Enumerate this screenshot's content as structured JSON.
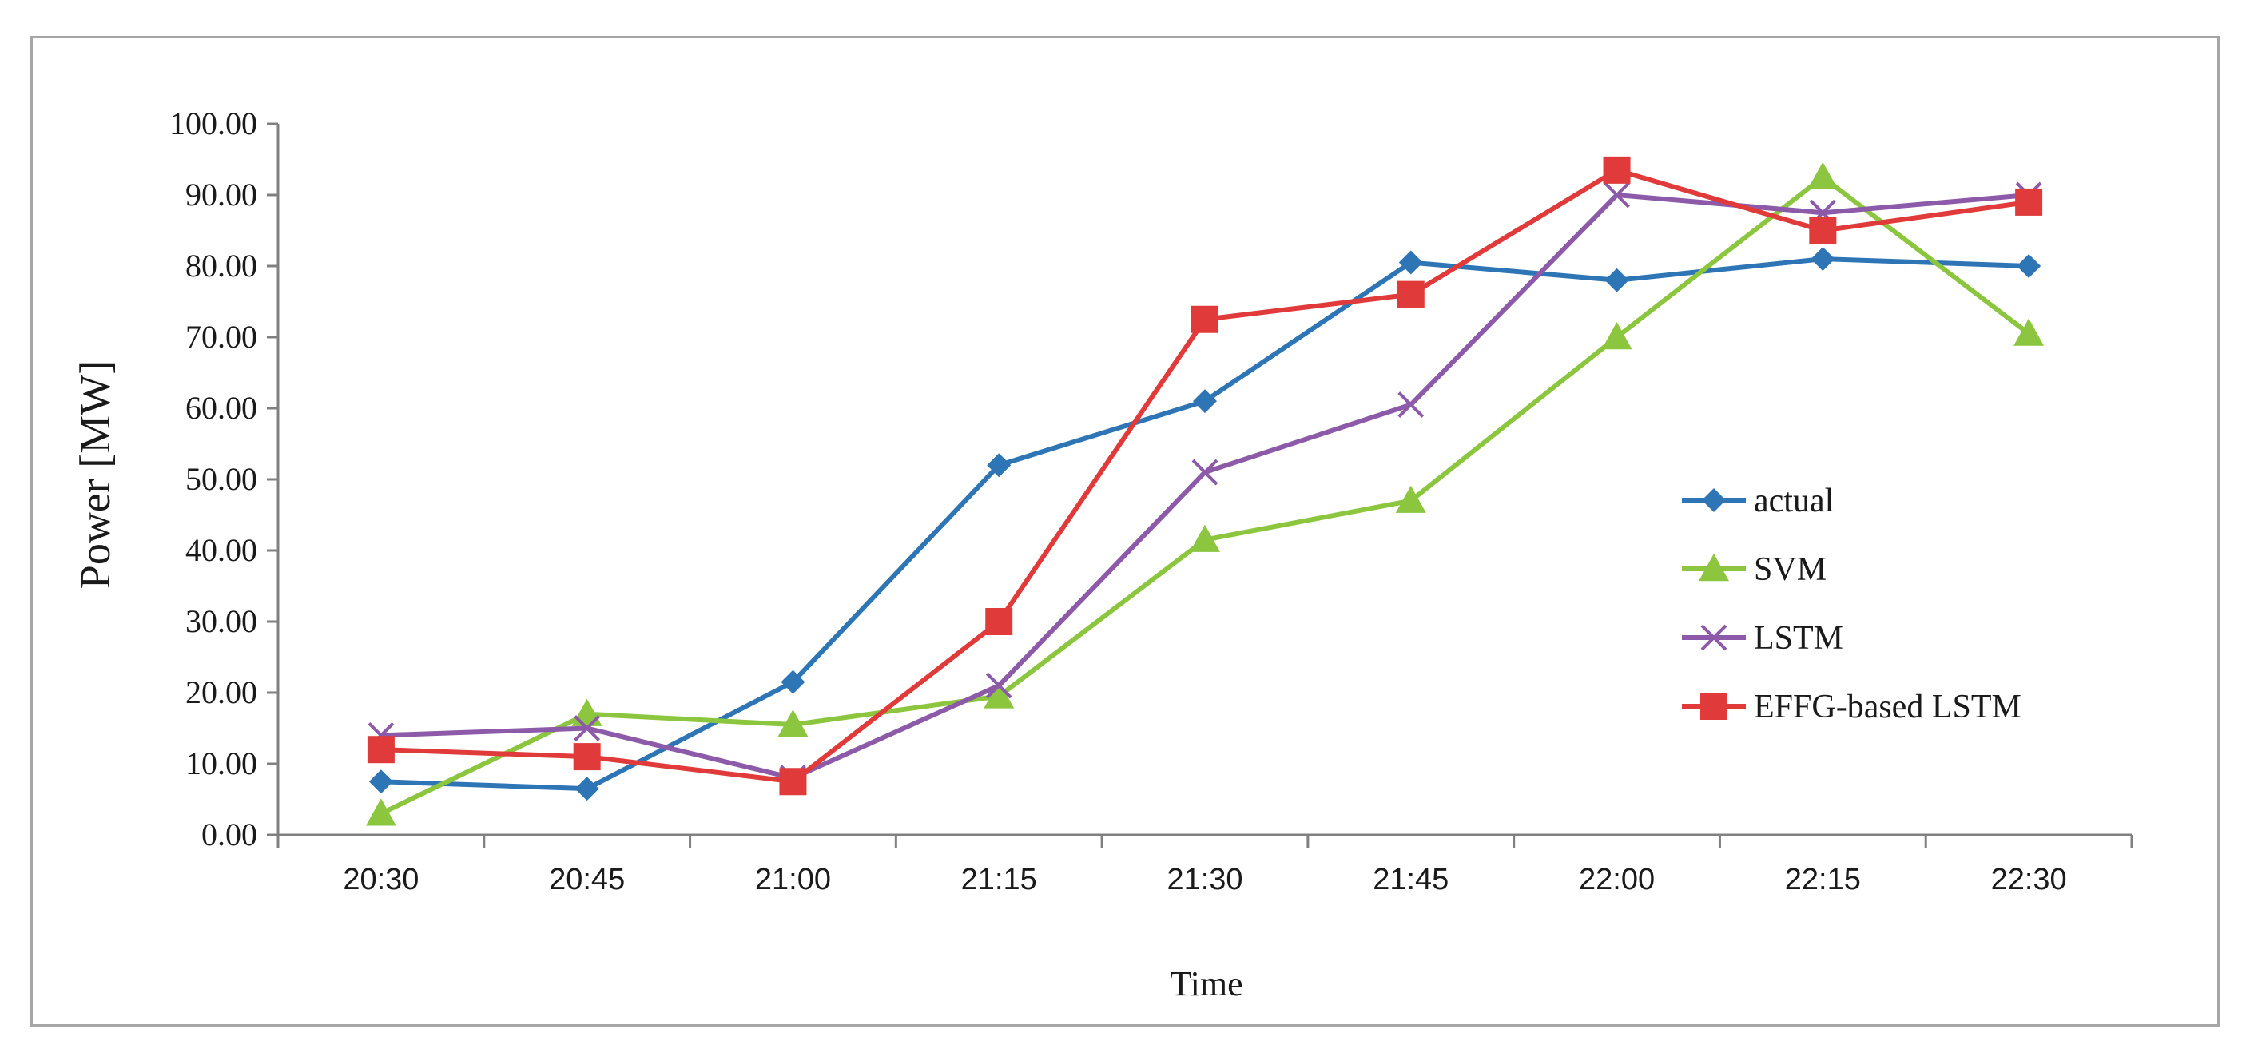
{
  "chart_data": {
    "type": "line",
    "title": "",
    "xlabel": "Time",
    "ylabel": "Power [MW]",
    "x": [
      "20:30",
      "20:45",
      "21:00",
      "21:15",
      "21:30",
      "21:45",
      "22:00",
      "22:15",
      "22:30"
    ],
    "ylim": [
      0,
      100
    ],
    "yticks": [
      "0.00",
      "10.00",
      "20.00",
      "30.00",
      "40.00",
      "50.00",
      "60.00",
      "70.00",
      "80.00",
      "90.00",
      "100.00"
    ],
    "grid": false,
    "legend_position": "right",
    "series": [
      {
        "name": "actual",
        "color": "#2e75b6",
        "marker": "diamond",
        "values": [
          7.5,
          6.5,
          21.5,
          52,
          61,
          80.5,
          78,
          81,
          80
        ]
      },
      {
        "name": "SVM",
        "color": "#8cc63f",
        "marker": "triangle",
        "values": [
          3,
          17,
          15.5,
          19.5,
          41.5,
          47,
          70,
          92.5,
          70.5
        ]
      },
      {
        "name": "LSTM",
        "color": "#8c5aa8",
        "marker": "x",
        "values": [
          14,
          15,
          8,
          21,
          51,
          60.5,
          90,
          87.5,
          90
        ]
      },
      {
        "name": "EFFG-based LSTM",
        "color": "#e03a3a",
        "marker": "square",
        "values": [
          12,
          11,
          7.5,
          30,
          72.5,
          76,
          93.5,
          85,
          89
        ]
      }
    ]
  }
}
